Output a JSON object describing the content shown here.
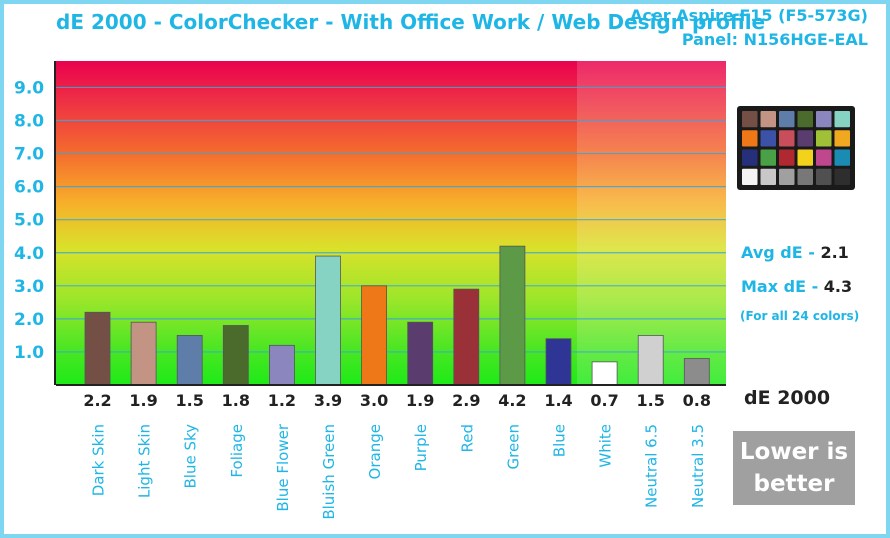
{
  "chart_data": {
    "type": "bar",
    "title": "dE 2000 - ColorChecker - With Office Work / Web Design profile",
    "device": "Acer Aspire F15 (F5-573G)",
    "panel": "Panel: N156HGE-EAL",
    "categories": [
      "Dark Skin",
      "Light Skin",
      "Blue Sky",
      "Foliage",
      "Blue Flower",
      "Bluish Green",
      "Orange",
      "Purple",
      "Red",
      "Green",
      "Blue",
      "White",
      "Neutral 6.5",
      "Neutral 3.5"
    ],
    "values": [
      2.2,
      1.9,
      1.5,
      1.8,
      1.2,
      3.9,
      3.0,
      1.9,
      2.9,
      4.2,
      1.4,
      0.7,
      1.5,
      0.8
    ],
    "value_labels": [
      "2.2",
      "1.9",
      "1.5",
      "1.8",
      "1.2",
      "3.9",
      "3.0",
      "1.9",
      "2.9",
      "4.2",
      "1.4",
      "0.7",
      "1.5",
      "0.8"
    ],
    "bar_colors": [
      "#734f45",
      "#c39484",
      "#5e7da8",
      "#4a6b2c",
      "#8c86be",
      "#86d2c3",
      "#ee7818",
      "#5a3c6e",
      "#9b3138",
      "#5c9a48",
      "#2e3594",
      "#ffffff",
      "#d0d0d0",
      "#8c8c8c"
    ],
    "ylim": [
      0,
      9.8
    ],
    "yticks": [
      1.0,
      2.0,
      3.0,
      4.0,
      5.0,
      6.0,
      7.0,
      8.0,
      9.0
    ],
    "ytick_labels": [
      "1.0",
      "2.0",
      "3.0",
      "4.0",
      "5.0",
      "6.0",
      "7.0",
      "8.0",
      "9.0"
    ],
    "grid": true,
    "xlabel": "",
    "ylabel": ""
  },
  "stats": {
    "avg_label": "Avg dE -",
    "avg_value": "2.1",
    "max_label": "Max dE -",
    "max_value": "4.3",
    "note": "(For all 24 colors)"
  },
  "metric_label": "dE 2000",
  "lower_is_better": "Lower is\nbetter",
  "checker_colors": [
    "#734f45",
    "#c39484",
    "#5e7da8",
    "#4a6b2c",
    "#8c86be",
    "#86d2c3",
    "#ee7818",
    "#3c52a6",
    "#c84e5c",
    "#5a3c6e",
    "#a0c038",
    "#f0a820",
    "#26307a",
    "#4aa046",
    "#b02830",
    "#f2d21a",
    "#c0468e",
    "#1a8cb4",
    "#f4f4f4",
    "#c8c8c8",
    "#a0a0a0",
    "#787878",
    "#505050",
    "#2e2e2e"
  ]
}
